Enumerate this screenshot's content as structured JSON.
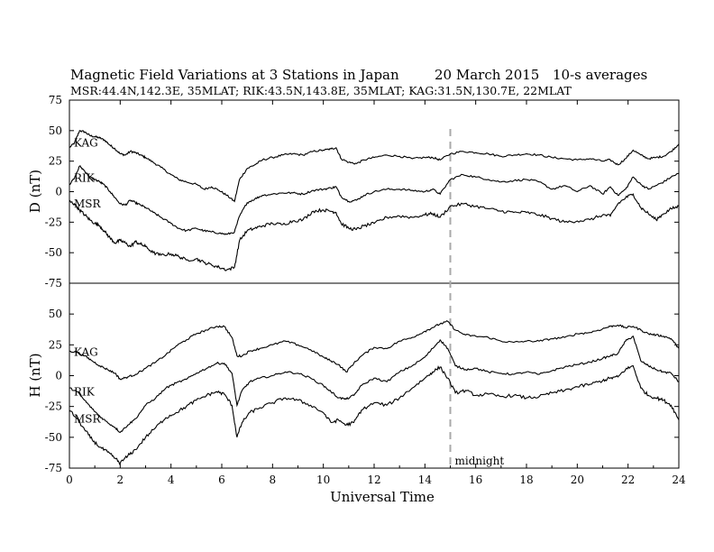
{
  "title": {
    "main": "Magnetic Field Variations at 3 Stations in Japan",
    "date": "20  March   2015",
    "averaging": "10-s averages",
    "stations": "MSR:44.4N,142.3E, 35MLAT;  RIK:43.5N,143.8E, 35MLAT;  KAG:31.5N,130.7E, 22MLAT"
  },
  "colors": {
    "line": "#000000",
    "marker": "#aaaaaa"
  },
  "chart_data": [
    {
      "type": "line",
      "panel": "top",
      "ylabel": "D (nT)",
      "xlabel": "",
      "xlim": [
        0,
        24
      ],
      "ylim": [
        -75,
        75
      ],
      "yticks": [
        75,
        50,
        25,
        0,
        -25,
        -50,
        -75
      ],
      "grid": false,
      "series_labels_inline": true,
      "series": [
        {
          "name": "KAG",
          "x": [
            0,
            0.2,
            0.4,
            0.6,
            0.8,
            1,
            1.2,
            1.4,
            1.6,
            1.8,
            2,
            2.2,
            2.4,
            2.6,
            2.8,
            3,
            3.3,
            3.6,
            4,
            4.3,
            4.6,
            5,
            5.3,
            5.6,
            5.9,
            6.2,
            6.5,
            6.7,
            7,
            7.3,
            7.6,
            8,
            8.4,
            8.8,
            9.2,
            9.6,
            10,
            10.3,
            10.5,
            10.7,
            11,
            11.3,
            11.6,
            12,
            12.5,
            13,
            13.5,
            14,
            14.3,
            14.6,
            15,
            15.5,
            16,
            16.5,
            17,
            17.5,
            18,
            18.5,
            19,
            19.5,
            20,
            20.5,
            21,
            21.3,
            21.6,
            21.9,
            22.2,
            22.5,
            22.8,
            23.1,
            23.4,
            23.7,
            24
          ],
          "y": [
            36,
            40,
            50,
            49,
            46,
            45,
            44,
            42,
            38,
            35,
            31,
            30,
            33,
            32,
            30,
            28,
            24,
            20,
            14,
            10,
            8,
            6,
            2,
            4,
            1,
            -3,
            -8,
            10,
            19,
            22,
            26,
            28,
            30,
            31,
            30,
            33,
            34,
            35,
            36,
            27,
            24,
            23,
            26,
            28,
            30,
            29,
            27,
            28,
            28,
            26,
            31,
            33,
            32,
            31,
            29,
            30,
            31,
            30,
            28,
            27,
            26,
            27,
            25,
            26,
            22,
            27,
            34,
            30,
            27,
            28,
            29,
            33,
            39
          ]
        },
        {
          "name": "RIK",
          "x": [
            0,
            0.2,
            0.4,
            0.6,
            0.8,
            1,
            1.2,
            1.4,
            1.6,
            1.8,
            2,
            2.2,
            2.4,
            2.6,
            2.8,
            3,
            3.3,
            3.6,
            4,
            4.3,
            4.6,
            5,
            5.3,
            5.6,
            5.9,
            6.2,
            6.5,
            6.7,
            7,
            7.3,
            7.6,
            8,
            8.4,
            8.8,
            9.2,
            9.6,
            10,
            10.3,
            10.5,
            10.7,
            11,
            11.3,
            11.6,
            12,
            12.5,
            13,
            13.5,
            14,
            14.3,
            14.6,
            15,
            15.5,
            16,
            16.5,
            17,
            17.5,
            18,
            18.5,
            19,
            19.5,
            20,
            20.5,
            21,
            21.3,
            21.6,
            21.9,
            22.2,
            22.5,
            22.8,
            23.1,
            23.4,
            23.7,
            24
          ],
          "y": [
            6,
            11,
            21,
            17,
            12,
            10,
            8,
            5,
            0,
            -5,
            -10,
            -11,
            -7,
            -9,
            -11,
            -13,
            -17,
            -21,
            -26,
            -30,
            -32,
            -30,
            -32,
            -33,
            -34,
            -35,
            -33,
            -20,
            -9,
            -6,
            -3,
            -2,
            -1,
            -1,
            -2,
            1,
            2,
            3,
            4,
            -4,
            -8,
            -7,
            -3,
            0,
            2,
            2,
            1,
            0,
            2,
            -2,
            10,
            14,
            12,
            10,
            8,
            9,
            10,
            8,
            2,
            5,
            0,
            5,
            -2,
            4,
            -3,
            2,
            12,
            6,
            2,
            5,
            8,
            12,
            15
          ]
        },
        {
          "name": "MSR",
          "x": [
            0,
            0.2,
            0.4,
            0.6,
            0.8,
            1,
            1.2,
            1.4,
            1.6,
            1.8,
            2,
            2.2,
            2.4,
            2.6,
            2.8,
            3,
            3.3,
            3.6,
            4,
            4.3,
            4.6,
            5,
            5.3,
            5.6,
            5.9,
            6.2,
            6.5,
            6.7,
            7,
            7.3,
            7.6,
            8,
            8.4,
            8.8,
            9.2,
            9.6,
            10,
            10.3,
            10.5,
            10.7,
            11,
            11.3,
            11.6,
            12,
            12.5,
            13,
            13.5,
            14,
            14.3,
            14.6,
            15,
            15.5,
            16,
            16.5,
            17,
            17.5,
            18,
            18.5,
            19,
            19.5,
            20,
            20.5,
            21,
            21.3,
            21.6,
            21.9,
            22.2,
            22.5,
            22.8,
            23.1,
            23.4,
            23.7,
            24
          ],
          "y": [
            -8,
            -10,
            -15,
            -19,
            -23,
            -26,
            -28,
            -33,
            -38,
            -42,
            -40,
            -42,
            -45,
            -41,
            -43,
            -45,
            -50,
            -52,
            -51,
            -53,
            -56,
            -55,
            -58,
            -60,
            -62,
            -64,
            -62,
            -40,
            -32,
            -30,
            -28,
            -26,
            -27,
            -24,
            -23,
            -16,
            -15,
            -16,
            -17,
            -26,
            -30,
            -31,
            -28,
            -26,
            -21,
            -20,
            -21,
            -19,
            -18,
            -21,
            -12,
            -10,
            -12,
            -14,
            -16,
            -17,
            -17,
            -19,
            -22,
            -25,
            -24,
            -23,
            -19,
            -20,
            -10,
            -5,
            -2,
            -13,
            -18,
            -23,
            -18,
            -14,
            -12
          ]
        }
      ]
    },
    {
      "type": "line",
      "panel": "bottom",
      "ylabel": "H (nT)",
      "xlabel": "Universal Time",
      "xlim": [
        0,
        24
      ],
      "ylim": [
        -75,
        75
      ],
      "yticks": [
        50,
        25,
        0,
        -25,
        -50,
        -75
      ],
      "xticks": [
        0,
        2,
        4,
        6,
        8,
        10,
        12,
        14,
        16,
        18,
        20,
        22,
        24
      ],
      "grid": false,
      "series_labels_inline": true,
      "marker_line": {
        "x": 15,
        "label": "midnight"
      },
      "series": [
        {
          "name": "KAG",
          "x": [
            0,
            0.3,
            0.6,
            0.9,
            1.2,
            1.5,
            1.8,
            2,
            2.3,
            2.6,
            3,
            3.4,
            3.8,
            4.2,
            4.6,
            5,
            5.4,
            5.8,
            6.1,
            6.4,
            6.6,
            6.8,
            7.1,
            7.5,
            8,
            8.5,
            9,
            9.5,
            10,
            10.3,
            10.6,
            10.9,
            11.2,
            11.5,
            12,
            12.5,
            13,
            13.5,
            14,
            14.3,
            14.6,
            14.9,
            15.2,
            15.6,
            16,
            16.5,
            17,
            17.5,
            18,
            18.5,
            19,
            19.5,
            20,
            20.5,
            21,
            21.3,
            21.6,
            21.9,
            22.2,
            22.5,
            22.8,
            23.1,
            23.4,
            23.7,
            24
          ],
          "y": [
            20,
            19,
            16,
            12,
            8,
            5,
            2,
            -3,
            -1,
            1,
            6,
            11,
            17,
            24,
            29,
            34,
            37,
            40,
            40,
            31,
            16,
            16,
            20,
            22,
            25,
            28,
            25,
            21,
            15,
            12,
            9,
            3,
            10,
            16,
            23,
            22,
            28,
            31,
            36,
            39,
            42,
            44,
            37,
            33,
            32,
            31,
            28,
            27,
            28,
            28,
            30,
            31,
            34,
            35,
            38,
            40,
            41,
            39,
            40,
            37,
            34,
            33,
            32,
            30,
            22
          ]
        },
        {
          "name": "RIK",
          "x": [
            0,
            0.3,
            0.6,
            0.9,
            1.2,
            1.5,
            1.8,
            2,
            2.3,
            2.6,
            3,
            3.4,
            3.8,
            4.2,
            4.6,
            5,
            5.4,
            5.8,
            6.1,
            6.4,
            6.6,
            6.8,
            7.1,
            7.5,
            8,
            8.5,
            9,
            9.5,
            10,
            10.3,
            10.6,
            10.9,
            11.2,
            11.5,
            12,
            12.5,
            13,
            13.5,
            14,
            14.3,
            14.6,
            14.9,
            15.2,
            15.6,
            16,
            16.5,
            17,
            17.5,
            18,
            18.5,
            19,
            19.5,
            20,
            20.5,
            21,
            21.3,
            21.6,
            21.9,
            22.2,
            22.5,
            22.8,
            23.1,
            23.4,
            23.7,
            24
          ],
          "y": [
            -10,
            -13,
            -20,
            -27,
            -33,
            -38,
            -42,
            -46,
            -40,
            -35,
            -24,
            -18,
            -10,
            -6,
            -3,
            2,
            6,
            10,
            10,
            2,
            -24,
            -12,
            -5,
            -2,
            0,
            3,
            2,
            -2,
            -8,
            -13,
            -18,
            -19,
            -16,
            -8,
            -2,
            -5,
            3,
            8,
            15,
            22,
            29,
            22,
            8,
            5,
            6,
            3,
            2,
            1,
            3,
            1,
            4,
            7,
            9,
            11,
            14,
            16,
            18,
            28,
            32,
            12,
            8,
            5,
            3,
            2,
            -5
          ]
        },
        {
          "name": "MSR",
          "x": [
            0,
            0.3,
            0.6,
            0.9,
            1.2,
            1.5,
            1.8,
            2,
            2.3,
            2.6,
            3,
            3.4,
            3.8,
            4.2,
            4.6,
            5,
            5.4,
            5.8,
            6.1,
            6.4,
            6.6,
            6.8,
            7.1,
            7.5,
            8,
            8.5,
            9,
            9.5,
            10,
            10.3,
            10.6,
            10.9,
            11.2,
            11.5,
            12,
            12.5,
            13,
            13.5,
            14,
            14.3,
            14.6,
            14.9,
            15.2,
            15.6,
            16,
            16.5,
            17,
            17.5,
            18,
            18.5,
            19,
            19.5,
            20,
            20.5,
            21,
            21.3,
            21.6,
            21.9,
            22.2,
            22.5,
            22.8,
            23.1,
            23.4,
            23.7,
            24
          ],
          "y": [
            -28,
            -35,
            -44,
            -52,
            -58,
            -62,
            -67,
            -71,
            -65,
            -60,
            -50,
            -42,
            -34,
            -30,
            -25,
            -20,
            -16,
            -13,
            -15,
            -24,
            -50,
            -38,
            -30,
            -26,
            -22,
            -18,
            -20,
            -24,
            -30,
            -38,
            -36,
            -40,
            -38,
            -28,
            -22,
            -24,
            -18,
            -10,
            -2,
            3,
            7,
            -2,
            -14,
            -12,
            -16,
            -15,
            -17,
            -16,
            -18,
            -17,
            -14,
            -12,
            -9,
            -7,
            -4,
            -2,
            -1,
            5,
            8,
            -10,
            -16,
            -18,
            -20,
            -24,
            -36
          ]
        }
      ]
    }
  ]
}
